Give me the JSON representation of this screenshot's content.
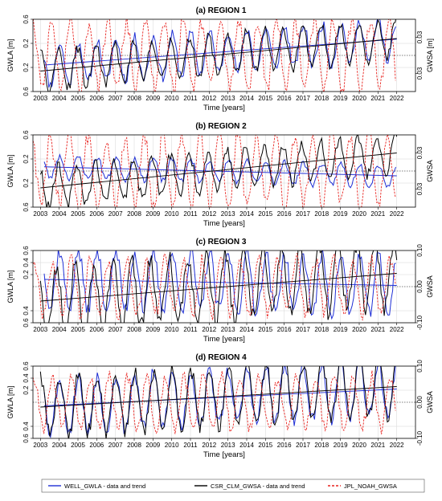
{
  "legend": {
    "well_label": "WELL_GWLA - data and trend",
    "csr_label": "CSR_CLM_GWSA - data and trend",
    "jpl_label": "JPL_NOAH_GWSA"
  },
  "colors": {
    "well": "#1f2fd6",
    "csr": "#000000",
    "jpl": "#e8231f"
  },
  "chart_data": [
    {
      "type": "line",
      "panel_letter": "(a)",
      "title": "REGION 1",
      "xlabel": "Time [years]",
      "ylabel": "GWLA [m]",
      "y2label": "GWSA [m]",
      "x_ticks": [
        "2003",
        "2004",
        "2005",
        "2006",
        "2007",
        "2008",
        "2009",
        "2010",
        "2011",
        "2012",
        "2013",
        "2014",
        "2015",
        "2016",
        "2017",
        "2018",
        "2019",
        "2020",
        "2021",
        "2022"
      ],
      "xlim": [
        2002.6,
        2023.0
      ],
      "ylim": [
        -0.6,
        0.6
      ],
      "yticks": [
        -0.6,
        -0.2,
        0.2,
        0.6
      ],
      "y2lim": [
        -0.06,
        0.06
      ],
      "y2ticks": [
        -0.03,
        0.03
      ],
      "grid": true,
      "seed": 11,
      "amp": {
        "well": 0.34,
        "csr": 0.33,
        "jpl": 0.55
      },
      "trend": {
        "well": [
          -0.16,
          0.27
        ],
        "csr": [
          -0.26,
          0.28
        ]
      },
      "series": [
        {
          "key": "well",
          "name": "WELL_GWLA - data and trend",
          "x_range": [
            2003.2,
            2022.0
          ]
        },
        {
          "key": "csr",
          "name": "CSR_CLM_GWSA - data and trend",
          "x_range": [
            2003.0,
            2022.0
          ]
        },
        {
          "key": "jpl",
          "name": "JPL_NOAH_GWSA",
          "x_range": [
            2002.6,
            2022.0
          ]
        }
      ]
    },
    {
      "type": "line",
      "panel_letter": "(b)",
      "title": "REGION 2",
      "xlabel": "Time [years]",
      "ylabel": "GWLA [m]",
      "y2label": "GWSA",
      "x_ticks": [
        "2003",
        "2004",
        "2005",
        "2006",
        "2007",
        "2008",
        "2009",
        "2010",
        "2011",
        "2012",
        "2013",
        "2014",
        "2015",
        "2016",
        "2017",
        "2018",
        "2019",
        "2020",
        "2021",
        "2022"
      ],
      "xlim": [
        2002.6,
        2023.0
      ],
      "ylim": [
        -0.6,
        0.6
      ],
      "yticks": [
        -0.6,
        -0.2,
        0.2,
        0.6
      ],
      "y2lim": [
        -0.06,
        0.06
      ],
      "y2ticks": [
        -0.03,
        0.03
      ],
      "grid": true,
      "seed": 23,
      "amp": {
        "well": 0.18,
        "csr": 0.33,
        "jpl": 0.6
      },
      "trend": {
        "well": [
          0.07,
          -0.08
        ],
        "csr": [
          -0.28,
          0.3
        ]
      },
      "series": [
        {
          "key": "well",
          "name": "WELL_GWLA - data and trend",
          "x_range": [
            2003.2,
            2022.0
          ]
        },
        {
          "key": "csr",
          "name": "CSR_CLM_GWSA - data and trend",
          "x_range": [
            2003.0,
            2022.0
          ]
        },
        {
          "key": "jpl",
          "name": "JPL_NOAH_GWSA",
          "x_range": [
            2002.6,
            2022.0
          ]
        }
      ]
    },
    {
      "type": "line",
      "panel_letter": "(c)",
      "title": "REGION 3",
      "xlabel": "Time [years]",
      "ylabel": "GWLA [m]",
      "y2label": "GWSA",
      "x_ticks": [
        "2003",
        "2004",
        "2005",
        "2006",
        "2007",
        "2008",
        "2009",
        "2010",
        "2011",
        "2012",
        "2013",
        "2014",
        "2015",
        "2016",
        "2017",
        "2018",
        "2019",
        "2020",
        "2021",
        "2022"
      ],
      "xlim": [
        2002.6,
        2023.0
      ],
      "ylim": [
        -0.6,
        0.6
      ],
      "yticks": [
        -0.6,
        -0.4,
        0.2,
        0.4,
        0.6
      ],
      "y2lim": [
        -0.1,
        0.1
      ],
      "y2ticks": [
        -0.1,
        0.0,
        0.1
      ],
      "y2tick_labels": [
        "-0.10",
        "0.00",
        "0.10"
      ],
      "grid": true,
      "seed": 37,
      "amp": {
        "well": 0.48,
        "csr": 0.55,
        "jpl": 0.45
      },
      "trend": {
        "well": [
          0.12,
          0.02
        ],
        "csr": [
          -0.24,
          0.22
        ]
      },
      "series": [
        {
          "key": "well",
          "name": "WELL_GWLA - data and trend",
          "x_range": [
            2003.2,
            2022.0
          ]
        },
        {
          "key": "csr",
          "name": "CSR_CLM_GWSA - data and trend",
          "x_range": [
            2003.0,
            2022.0
          ]
        },
        {
          "key": "jpl",
          "name": "JPL_NOAH_GWSA",
          "x_range": [
            2002.6,
            2022.0
          ]
        }
      ]
    },
    {
      "type": "line",
      "panel_letter": "(d)",
      "title": "REGION 4",
      "xlabel": "Time [years]",
      "ylabel": "GWLA [m]",
      "y2label": "GWSA",
      "x_ticks": [
        "2003",
        "2004",
        "2005",
        "2006",
        "2007",
        "2008",
        "2009",
        "2010",
        "2011",
        "2012",
        "2013",
        "2014",
        "2015",
        "2016",
        "2017",
        "2018",
        "2019",
        "2020",
        "2021",
        "2022"
      ],
      "xlim": [
        2002.6,
        2023.0
      ],
      "ylim": [
        -0.6,
        0.6
      ],
      "yticks": [
        -0.6,
        -0.4,
        0.2,
        0.4,
        0.6
      ],
      "y2lim": [
        -0.1,
        0.1
      ],
      "y2ticks": [
        -0.1,
        0.0,
        0.1
      ],
      "y2tick_labels": [
        "-0.10",
        "0.00",
        "0.10"
      ],
      "grid": true,
      "seed": 53,
      "amp": {
        "well": 0.45,
        "csr": 0.48,
        "jpl": 0.42
      },
      "trend": {
        "well": [
          -0.06,
          0.22
        ],
        "csr": [
          -0.08,
          0.26
        ]
      },
      "series": [
        {
          "key": "well",
          "name": "WELL_GWLA - data and trend",
          "x_range": [
            2003.2,
            2022.0
          ]
        },
        {
          "key": "csr",
          "name": "CSR_CLM_GWSA - data and trend",
          "x_range": [
            2003.0,
            2022.0
          ]
        },
        {
          "key": "jpl",
          "name": "JPL_NOAH_GWSA",
          "x_range": [
            2002.6,
            2022.0
          ]
        }
      ]
    }
  ]
}
